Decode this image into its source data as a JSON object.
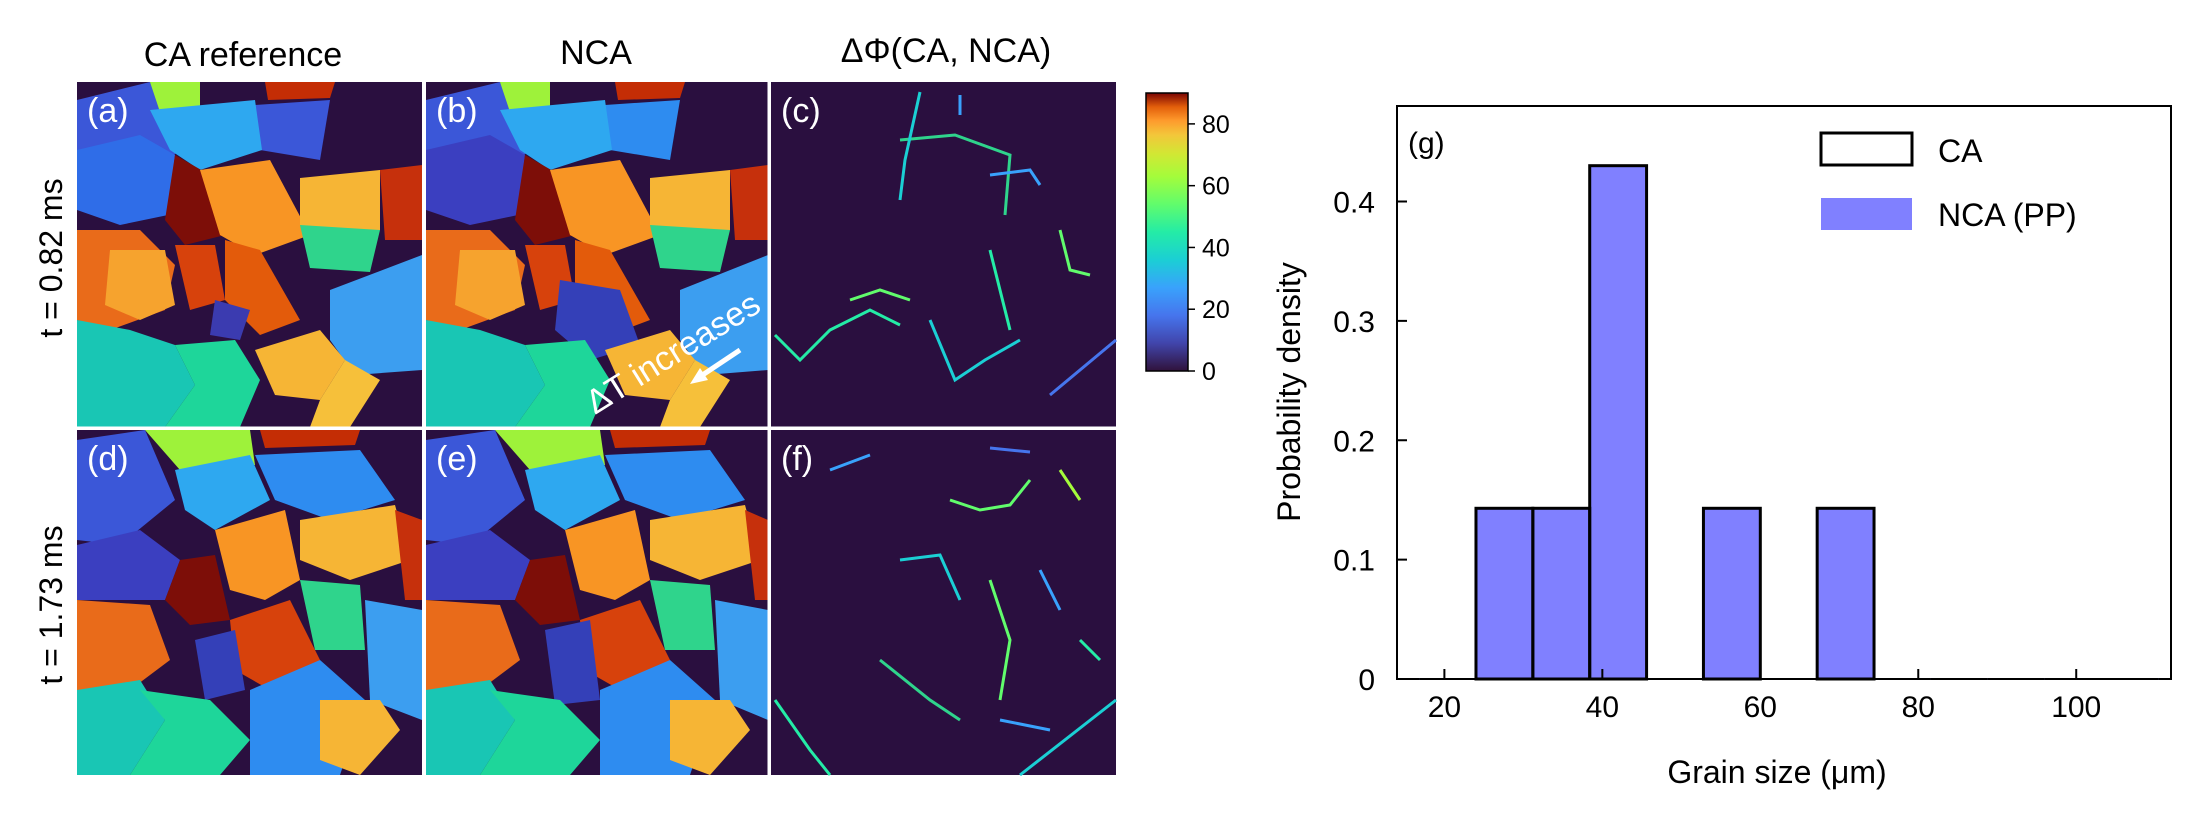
{
  "maps": {
    "col_titles": [
      "CA reference",
      "NCA",
      "ΔΦ(CA, NCA)"
    ],
    "row_titles": [
      "t = 0.82 ms",
      "t = 1.73 ms"
    ],
    "panel_labels": [
      "(a)",
      "(b)",
      "(c)",
      "(d)",
      "(e)",
      "(f)"
    ],
    "annotation": "ΔT increases",
    "colorbar": {
      "ticks": [
        "80",
        "60",
        "40",
        "20",
        "0"
      ],
      "range": [
        0,
        90
      ]
    }
  },
  "chart_data": {
    "type": "histogram",
    "panel_label": "(g)",
    "xlabel": "Grain size (μm)",
    "ylabel": "Probability density",
    "xlim": [
      14,
      112
    ],
    "ylim": [
      0,
      0.48
    ],
    "xticks": [
      20,
      40,
      60,
      80,
      100
    ],
    "xtick_labels": [
      "20",
      "40",
      "60",
      "80",
      "100"
    ],
    "yticks": [
      0,
      0.1,
      0.2,
      0.3,
      0.4
    ],
    "ytick_labels": [
      "0",
      "0.1",
      "0.2",
      "0.3",
      "0.4"
    ],
    "series": [
      {
        "name": "CA",
        "style": "outline",
        "bins": [
          [
            16.8,
            24.0
          ],
          [
            24.0,
            31.2
          ],
          [
            31.2,
            38.4
          ],
          [
            38.4,
            45.6
          ],
          [
            45.6,
            52.8
          ],
          [
            52.8,
            60.0
          ],
          [
            60.0,
            67.2
          ],
          [
            67.2,
            74.4
          ],
          [
            74.4,
            81.6
          ],
          [
            81.6,
            88.8
          ],
          [
            88.8,
            96.0
          ],
          [
            96.0,
            103.2
          ],
          [
            103.2,
            110.4
          ]
        ],
        "values": [
          0,
          0.143,
          0.143,
          0.43,
          0,
          0.143,
          0,
          0.143,
          0,
          0,
          0,
          0,
          0
        ]
      },
      {
        "name": "NCA (PP)",
        "style": "filled",
        "color": "#8080ff",
        "bins": [
          [
            16.8,
            24.0
          ],
          [
            24.0,
            31.2
          ],
          [
            31.2,
            38.4
          ],
          [
            38.4,
            45.6
          ],
          [
            45.6,
            52.8
          ],
          [
            52.8,
            60.0
          ],
          [
            60.0,
            67.2
          ],
          [
            67.2,
            74.4
          ],
          [
            74.4,
            81.6
          ],
          [
            81.6,
            88.8
          ],
          [
            88.8,
            96.0
          ],
          [
            96.0,
            103.2
          ],
          [
            103.2,
            110.4
          ]
        ],
        "values": [
          0,
          0.143,
          0.143,
          0.43,
          0,
          0.143,
          0,
          0.143,
          0,
          0,
          0,
          0,
          0
        ]
      }
    ]
  }
}
